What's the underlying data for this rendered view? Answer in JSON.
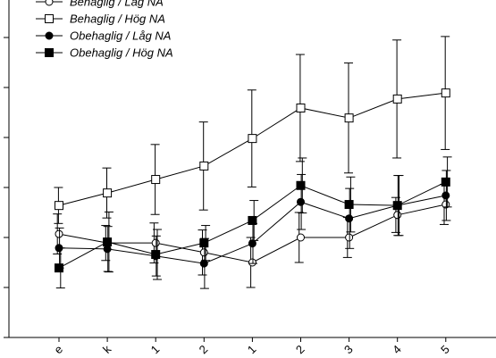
{
  "chart_data": {
    "type": "line",
    "categories": [
      "e",
      "k",
      "1",
      "2",
      "1",
      "2",
      "3",
      "4",
      "5"
    ],
    "ylim": [
      0,
      6.75
    ],
    "yticks": [
      0,
      1,
      2,
      3,
      4,
      5,
      6
    ],
    "series": [
      {
        "name": "Behaglig / Låg NA",
        "color": "#000000",
        "marker": "open-circle",
        "values": [
          2.07,
          1.89,
          1.89,
          1.7,
          1.5,
          2.0,
          2.0,
          2.45,
          2.66
        ],
        "errors": [
          0.4,
          0.35,
          0.4,
          0.45,
          0.5,
          0.5,
          0.4,
          0.35,
          0.4
        ]
      },
      {
        "name": "Behaglig / Hög NA",
        "color": "#000000",
        "marker": "open-square",
        "values": [
          2.64,
          2.89,
          3.16,
          3.43,
          3.98,
          4.59,
          4.39,
          4.77,
          4.89
        ],
        "errors": [
          0.36,
          0.5,
          0.7,
          0.88,
          0.97,
          1.07,
          1.1,
          1.18,
          1.13
        ]
      },
      {
        "name": "Obehaglig / Låg NA",
        "color": "#000000",
        "marker": "filled-circle",
        "values": [
          1.79,
          1.77,
          1.63,
          1.48,
          1.88,
          2.71,
          2.38,
          2.64,
          2.84
        ],
        "errors": [
          0.4,
          0.45,
          0.4,
          0.5,
          0.4,
          0.55,
          0.6,
          0.6,
          0.5
        ]
      },
      {
        "name": "Obehaglig / Hög NA",
        "color": "#000000",
        "marker": "filled-square",
        "values": [
          1.39,
          1.91,
          1.66,
          1.89,
          2.34,
          3.04,
          2.66,
          2.64,
          3.11
        ],
        "errors": [
          0.4,
          0.6,
          0.5,
          0.35,
          0.4,
          0.55,
          0.55,
          0.6,
          0.5
        ]
      }
    ]
  }
}
